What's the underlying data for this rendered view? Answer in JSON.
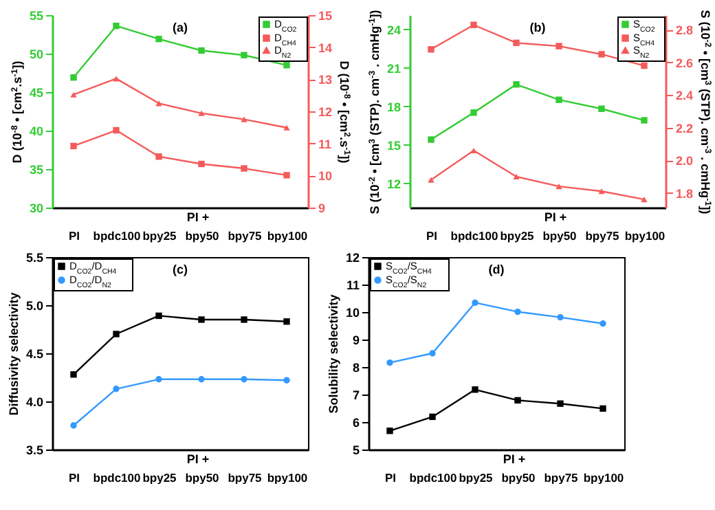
{
  "chart_data": [
    {
      "type": "line",
      "title": "(a)",
      "ylabel": "D (10$^{-8}$ • [cm$^{2}$.s$^{-1}$])",
      "y2label": "D (10$^{-8}$ • [cm$^{2}$.s$^{-1}$])",
      "categories": [
        "PI",
        "bpdc100",
        "bpy25",
        "bpy50",
        "bpy75",
        "bpy100"
      ],
      "annotations": [
        "PI +"
      ],
      "ylim": [
        30,
        55
      ],
      "yticks": [
        30,
        35,
        40,
        45,
        50,
        55
      ],
      "y2lim": [
        9,
        15
      ],
      "y2ticks": [
        9,
        10,
        11,
        12,
        13,
        14,
        15
      ],
      "legend": "top right",
      "series": [
        {
          "name": "D$_{CO2}$",
          "color": "#33cc33",
          "marker": "square",
          "values": [
            46.9,
            53.6,
            51.9,
            50.4,
            49.8,
            48.5
          ]
        },
        {
          "name": "D$_{CH4}$",
          "color": "#f55a5a",
          "marker": "square",
          "axis": "y2",
          "values": [
            10.92,
            11.41,
            10.59,
            10.36,
            10.22,
            10.01
          ]
        },
        {
          "name": "D$_{N2}$",
          "color": "#f55a5a",
          "marker": "triangle",
          "axis": "y2",
          "values": [
            12.52,
            13.02,
            12.25,
            11.94,
            11.75,
            11.49
          ]
        }
      ]
    },
    {
      "type": "line",
      "title": "(b)",
      "ylabel": "S (10$^{-2}$ • [cm$^{3}$ (STP). cm$^{-3}$ . cmHg$^{-1}$])",
      "y2label": "S (10$^{-2}$ • [cm$^{3}$ (STP). cm$^{-3}$ . cmHg$^{-1}$])",
      "categories": [
        "PI",
        "bpdc100",
        "bpy25",
        "bpy50",
        "bpy75",
        "bpy100"
      ],
      "annotations": [
        "PI +"
      ],
      "ylim": [
        10.1,
        25.1
      ],
      "yticks": [
        12,
        15,
        18,
        21,
        24
      ],
      "y2lim": [
        1.71,
        2.89
      ],
      "y2ticks": [
        1.8,
        {
          "value": 2,
          "label": "2.0"
        },
        2.2,
        2.4,
        2.6,
        2.8
      ],
      "legend": "top right",
      "series": [
        {
          "name": "S$_{CO2}$",
          "color": "#33cc33",
          "marker": "square",
          "values": [
            15.4,
            17.5,
            19.7,
            18.5,
            17.8,
            16.9
          ]
        },
        {
          "name": "S$_{CH4}$",
          "color": "#f55a5a",
          "marker": "square",
          "axis": "y2",
          "values": [
            2.68,
            2.83,
            2.72,
            2.7,
            2.65,
            2.58
          ]
        },
        {
          "name": "S$_{N2}$",
          "color": "#f55a5a",
          "marker": "triangle",
          "axis": "y2",
          "values": [
            1.88,
            2.06,
            1.9,
            1.84,
            1.81,
            1.76
          ]
        }
      ]
    },
    {
      "type": "line",
      "title": "(c)",
      "ylabel": "Diffusivity selectivity",
      "categories": [
        "PI",
        "bpdc100",
        "bpy25",
        "bpy50",
        "bpy75",
        "bpy100"
      ],
      "annotations": [
        "PI +"
      ],
      "ylim": [
        3.5,
        5.5
      ],
      "yticks": [
        3.5,
        {
          "value": 4,
          "label": "4.0"
        },
        4.5,
        {
          "value": 5,
          "label": "5.0"
        },
        5.5
      ],
      "legend": "top left",
      "series": [
        {
          "name": "D$_{CO2}$/D$_{CH4}$",
          "color": "#000000",
          "marker": "square",
          "values": [
            4.28,
            4.7,
            4.89,
            4.85,
            4.85,
            4.83
          ]
        },
        {
          "name": "D$_{CO2}$/D$_{N2}$",
          "color": "#3399ff",
          "marker": "circle",
          "values": [
            3.75,
            4.13,
            4.23,
            4.23,
            4.23,
            4.22
          ]
        }
      ]
    },
    {
      "type": "line",
      "title": "(d)",
      "ylabel": "Solubility selectivity",
      "categories": [
        "PI",
        "bpdc100",
        "bpy25",
        "bpy50",
        "bpy75",
        "bpy100"
      ],
      "annotations": [
        "PI +"
      ],
      "ylim": [
        5,
        12
      ],
      "yticks": [
        5,
        6,
        7,
        8,
        9,
        10,
        11,
        12
      ],
      "legend": "top left",
      "series": [
        {
          "name": "S$_{CO2}$/S$_{CH4}$",
          "color": "#000000",
          "marker": "square",
          "values": [
            5.68,
            6.19,
            7.18,
            6.79,
            6.67,
            6.49
          ]
        },
        {
          "name": "S$_{CO2}$/S$_{N2}$",
          "color": "#3399ff",
          "marker": "circle",
          "values": [
            8.16,
            8.5,
            10.34,
            10.01,
            9.81,
            9.58
          ]
        }
      ]
    }
  ]
}
